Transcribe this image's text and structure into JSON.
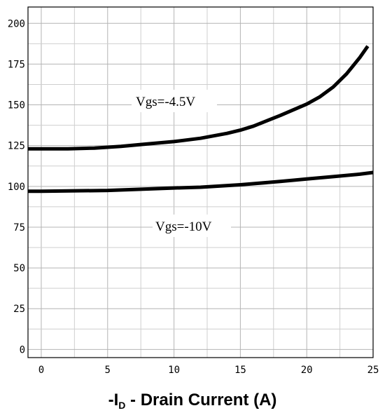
{
  "chart_data": {
    "type": "line",
    "xlabel": {
      "prefix": "-I",
      "subscript": "D",
      "suffix": " - Drain Current (A)"
    },
    "ylabel": "",
    "xlim": [
      -1,
      25
    ],
    "ylim": [
      -5,
      210
    ],
    "xticks": [
      0,
      5,
      10,
      15,
      20,
      25
    ],
    "yticks": [
      0,
      25,
      50,
      75,
      100,
      125,
      150,
      175,
      200
    ],
    "grid": true,
    "series": [
      {
        "name": "Vgs=-4.5V",
        "x": [
          -1,
          0,
          2,
          4,
          6,
          8,
          10,
          12,
          14,
          15,
          16,
          18,
          20,
          21,
          22,
          23,
          24,
          24.6
        ],
        "y": [
          123,
          123,
          123,
          123.5,
          124.5,
          126,
          127.5,
          129.5,
          132.5,
          134.5,
          137,
          143.5,
          150.5,
          155,
          161,
          169,
          179,
          186
        ]
      },
      {
        "name": "Vgs=-10V",
        "x": [
          -1,
          0,
          5,
          10,
          12,
          15,
          18,
          20,
          22,
          24,
          25
        ],
        "y": [
          97,
          97,
          97.5,
          99,
          99.5,
          101,
          103,
          104.5,
          106,
          107.5,
          108.5
        ]
      }
    ]
  }
}
